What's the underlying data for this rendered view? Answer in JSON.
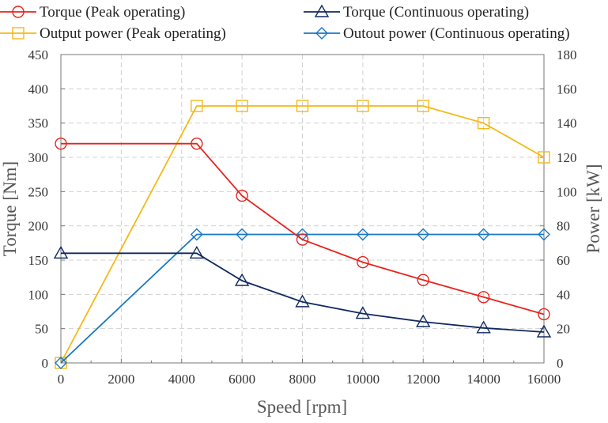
{
  "chart_data": {
    "type": "line",
    "xlabel": "Speed [rpm]",
    "ylabel_left": "Torque [Nm]",
    "ylabel_right": "Power [kW]",
    "xlim": [
      0,
      16000
    ],
    "ylim_left": [
      0,
      450
    ],
    "ylim_right": [
      0,
      180
    ],
    "x_ticks": [
      0,
      2000,
      4000,
      6000,
      8000,
      10000,
      12000,
      14000,
      16000
    ],
    "y_left_ticks": [
      0,
      50,
      100,
      150,
      200,
      250,
      300,
      350,
      400,
      450
    ],
    "y_right_ticks": [
      0,
      20,
      40,
      60,
      80,
      100,
      120,
      140,
      160,
      180
    ],
    "grid": true,
    "legend_position": "top",
    "series": [
      {
        "name": "Torque (Peak operating)",
        "axis": "left",
        "color": "#e8231e",
        "marker": "circle",
        "x": [
          0,
          4500,
          6000,
          8000,
          10000,
          12000,
          14000,
          16000
        ],
        "y": [
          320,
          320,
          244,
          180,
          147,
          121,
          96,
          71
        ]
      },
      {
        "name": "Torque (Continuous operating)",
        "axis": "left",
        "color": "#102a5e",
        "marker": "triangle",
        "x": [
          0,
          4500,
          6000,
          8000,
          10000,
          12000,
          14000,
          16000
        ],
        "y": [
          160,
          160,
          120,
          89,
          72,
          60,
          51,
          45
        ]
      },
      {
        "name": "Output power (Peak operating)",
        "axis": "right",
        "color": "#f5b819",
        "marker": "square",
        "x": [
          0,
          4500,
          6000,
          8000,
          10000,
          12000,
          14000,
          16000
        ],
        "y": [
          0,
          150,
          150,
          150,
          150,
          150,
          140,
          120
        ]
      },
      {
        "name": "Outout power (Continuous operating)",
        "axis": "right",
        "color": "#1a78c2",
        "marker": "diamond",
        "x": [
          0,
          4500,
          6000,
          8000,
          10000,
          12000,
          14000,
          16000
        ],
        "y": [
          0,
          75,
          75,
          75,
          75,
          75,
          75,
          75
        ]
      }
    ]
  }
}
